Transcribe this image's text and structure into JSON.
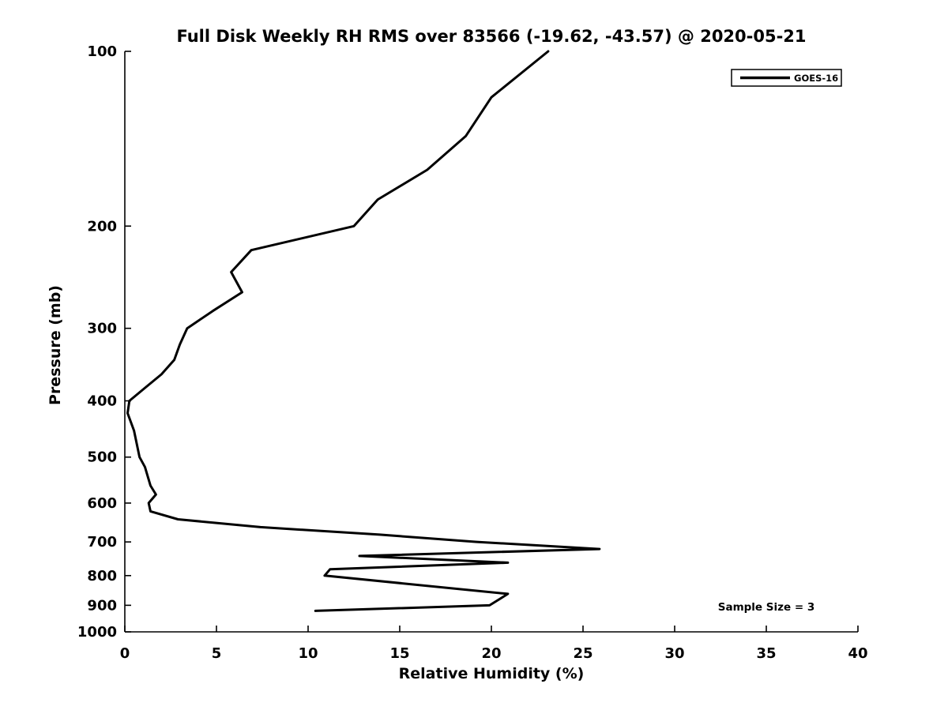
{
  "chart_data": {
    "type": "line",
    "title": "Full Disk Weekly RH RMS over 83566 (-19.62, -43.57) @ 2020-05-21",
    "xlabel": "Relative Humidity (%)",
    "ylabel": "Pressure (mb)",
    "xlim": [
      0,
      40
    ],
    "xticks": [
      0,
      5,
      10,
      15,
      20,
      25,
      30,
      35,
      40
    ],
    "ylim": [
      100,
      1000
    ],
    "yscale": "log",
    "yticks": [
      100,
      200,
      300,
      400,
      500,
      600,
      700,
      800,
      900,
      1000
    ],
    "grid": false,
    "background_color": "#ffffff",
    "axis_color": "#000000",
    "legend": {
      "position": "top-right",
      "entries": [
        {
          "name": "GOES-16",
          "color": "#000000"
        }
      ]
    },
    "annotation": "Sample Size = 3",
    "series": [
      {
        "name": "GOES-16",
        "color": "#000000",
        "points_rh_pressure": [
          [
            23.1,
            100
          ],
          [
            20.0,
            120
          ],
          [
            18.6,
            140
          ],
          [
            16.5,
            160
          ],
          [
            13.8,
            180
          ],
          [
            12.5,
            200
          ],
          [
            6.9,
            220
          ],
          [
            5.8,
            240
          ],
          [
            6.4,
            260
          ],
          [
            4.8,
            280
          ],
          [
            3.4,
            300
          ],
          [
            3.0,
            320
          ],
          [
            2.7,
            340
          ],
          [
            2.0,
            360
          ],
          [
            1.1,
            380
          ],
          [
            0.25,
            400
          ],
          [
            0.15,
            420
          ],
          [
            0.5,
            450
          ],
          [
            0.8,
            500
          ],
          [
            1.1,
            520
          ],
          [
            1.4,
            560
          ],
          [
            1.7,
            580
          ],
          [
            1.3,
            600
          ],
          [
            1.4,
            620
          ],
          [
            2.9,
            640
          ],
          [
            7.4,
            660
          ],
          [
            13.9,
            680
          ],
          [
            19.2,
            700
          ],
          [
            25.9,
            720
          ],
          [
            12.8,
            740
          ],
          [
            20.9,
            760
          ],
          [
            11.2,
            780
          ],
          [
            10.9,
            800
          ],
          [
            20.9,
            860
          ],
          [
            19.9,
            900
          ],
          [
            10.4,
            920
          ]
        ]
      }
    ]
  }
}
